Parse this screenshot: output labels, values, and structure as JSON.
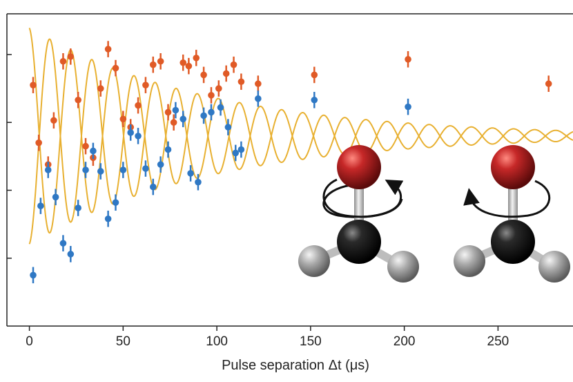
{
  "chart_data": {
    "type": "scatter",
    "title": "",
    "xlabel": "Pulse separation  Δt (μs)",
    "ylabel": "",
    "xlim": [
      -12,
      290
    ],
    "ylim": [
      0,
      4.6
    ],
    "x_ticks": [
      {
        "value": 0,
        "label": "0"
      },
      {
        "value": 50,
        "label": "50"
      },
      {
        "value": 100,
        "label": "100"
      },
      {
        "value": 150,
        "label": "150"
      },
      {
        "value": 200,
        "label": "200"
      },
      {
        "value": 250,
        "label": "250"
      }
    ],
    "y_ticks": [
      1,
      2,
      3,
      4
    ],
    "grid": false,
    "colors": {
      "orange": "#e05a26",
      "blue": "#2f78c4",
      "fit": "#e8b030",
      "axis": "#222222",
      "oxygen": "#b01e1e",
      "carbon": "#1a1a1a",
      "hydrogen": "#a8a8a8",
      "bond": "#bdbdbd"
    },
    "series": [
      {
        "color": "orange",
        "points": [
          {
            "x": 2,
            "y": 3.55,
            "err": 0.12
          },
          {
            "x": 5,
            "y": 2.7,
            "err": 0.12
          },
          {
            "x": 10,
            "y": 2.38,
            "err": 0.12
          },
          {
            "x": 13,
            "y": 3.03,
            "err": 0.12
          },
          {
            "x": 18,
            "y": 3.9,
            "err": 0.12
          },
          {
            "x": 22,
            "y": 3.97,
            "err": 0.12
          },
          {
            "x": 26,
            "y": 3.33,
            "err": 0.12
          },
          {
            "x": 30,
            "y": 2.65,
            "err": 0.12
          },
          {
            "x": 34,
            "y": 2.48,
            "err": 0.12
          },
          {
            "x": 38,
            "y": 3.5,
            "err": 0.12
          },
          {
            "x": 42,
            "y": 4.08,
            "err": 0.12
          },
          {
            "x": 46,
            "y": 3.8,
            "err": 0.12
          },
          {
            "x": 50,
            "y": 3.05,
            "err": 0.12
          },
          {
            "x": 54,
            "y": 2.93,
            "err": 0.12
          },
          {
            "x": 58,
            "y": 3.25,
            "err": 0.12
          },
          {
            "x": 62,
            "y": 3.55,
            "err": 0.12
          },
          {
            "x": 66,
            "y": 3.85,
            "err": 0.12
          },
          {
            "x": 70,
            "y": 3.9,
            "err": 0.12
          },
          {
            "x": 74,
            "y": 3.15,
            "err": 0.12
          },
          {
            "x": 77,
            "y": 3.0,
            "err": 0.12
          },
          {
            "x": 82,
            "y": 3.88,
            "err": 0.12
          },
          {
            "x": 85,
            "y": 3.83,
            "err": 0.12
          },
          {
            "x": 89,
            "y": 3.95,
            "err": 0.12
          },
          {
            "x": 93,
            "y": 3.7,
            "err": 0.12
          },
          {
            "x": 97,
            "y": 3.4,
            "err": 0.12
          },
          {
            "x": 101,
            "y": 3.5,
            "err": 0.12
          },
          {
            "x": 105,
            "y": 3.72,
            "err": 0.12
          },
          {
            "x": 109,
            "y": 3.85,
            "err": 0.12
          },
          {
            "x": 113,
            "y": 3.6,
            "err": 0.12
          },
          {
            "x": 122,
            "y": 3.57,
            "err": 0.12
          },
          {
            "x": 152,
            "y": 3.7,
            "err": 0.12
          },
          {
            "x": 202,
            "y": 3.93,
            "err": 0.12
          },
          {
            "x": 277,
            "y": 3.57,
            "err": 0.12
          }
        ]
      },
      {
        "color": "blue",
        "points": [
          {
            "x": 2,
            "y": 0.75,
            "err": 0.12
          },
          {
            "x": 6,
            "y": 1.77,
            "err": 0.12
          },
          {
            "x": 10,
            "y": 2.3,
            "err": 0.12
          },
          {
            "x": 14,
            "y": 1.9,
            "err": 0.12
          },
          {
            "x": 18,
            "y": 1.22,
            "err": 0.12
          },
          {
            "x": 22,
            "y": 1.06,
            "err": 0.12
          },
          {
            "x": 26,
            "y": 1.74,
            "err": 0.12
          },
          {
            "x": 30,
            "y": 2.3,
            "err": 0.12
          },
          {
            "x": 34,
            "y": 2.58,
            "err": 0.12
          },
          {
            "x": 38,
            "y": 2.28,
            "err": 0.12
          },
          {
            "x": 42,
            "y": 1.58,
            "err": 0.12
          },
          {
            "x": 46,
            "y": 1.82,
            "err": 0.12
          },
          {
            "x": 50,
            "y": 2.3,
            "err": 0.12
          },
          {
            "x": 54,
            "y": 2.85,
            "err": 0.12
          },
          {
            "x": 58,
            "y": 2.8,
            "err": 0.12
          },
          {
            "x": 62,
            "y": 2.32,
            "err": 0.12
          },
          {
            "x": 66,
            "y": 2.05,
            "err": 0.12
          },
          {
            "x": 70,
            "y": 2.38,
            "err": 0.12
          },
          {
            "x": 74,
            "y": 2.6,
            "err": 0.12
          },
          {
            "x": 78,
            "y": 3.18,
            "err": 0.12
          },
          {
            "x": 82,
            "y": 3.05,
            "err": 0.12
          },
          {
            "x": 86,
            "y": 2.25,
            "err": 0.12
          },
          {
            "x": 90,
            "y": 2.12,
            "err": 0.12
          },
          {
            "x": 93,
            "y": 3.1,
            "err": 0.12
          },
          {
            "x": 97,
            "y": 3.15,
            "err": 0.12
          },
          {
            "x": 102,
            "y": 3.22,
            "err": 0.12
          },
          {
            "x": 106,
            "y": 2.93,
            "err": 0.12
          },
          {
            "x": 110,
            "y": 2.55,
            "err": 0.12
          },
          {
            "x": 113,
            "y": 2.6,
            "err": 0.12
          },
          {
            "x": 122,
            "y": 3.35,
            "err": 0.12
          },
          {
            "x": 152,
            "y": 3.33,
            "err": 0.12
          },
          {
            "x": 202,
            "y": 3.23,
            "err": 0.12
          }
        ]
      }
    ],
    "fit_curves": {
      "color": "fit",
      "x_range": [
        0,
        290
      ],
      "period": 22.5,
      "offset": 2.8,
      "amplitude_start": 1.6,
      "decay_time": 95,
      "phase": 0.1
    },
    "inset": {
      "molecules": [
        {
          "rotation": "counterclockwise"
        },
        {
          "rotation": "clockwise"
        }
      ]
    }
  }
}
